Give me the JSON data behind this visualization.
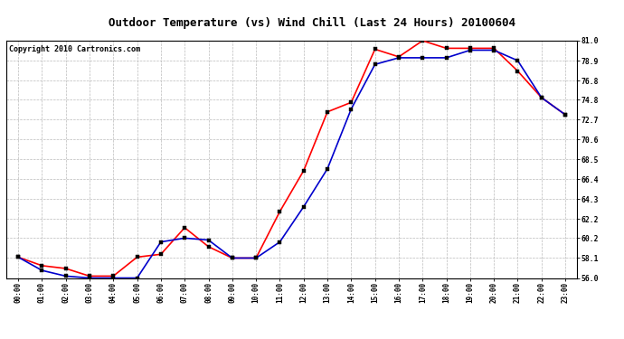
{
  "title": "Outdoor Temperature (vs) Wind Chill (Last 24 Hours) 20100604",
  "copyright": "Copyright 2010 Cartronics.com",
  "x_labels": [
    "00:00",
    "01:00",
    "02:00",
    "03:00",
    "04:00",
    "05:00",
    "06:00",
    "07:00",
    "08:00",
    "09:00",
    "10:00",
    "11:00",
    "12:00",
    "13:00",
    "14:00",
    "15:00",
    "16:00",
    "17:00",
    "18:00",
    "19:00",
    "20:00",
    "21:00",
    "22:00",
    "23:00"
  ],
  "temp": [
    58.2,
    57.3,
    57.0,
    56.2,
    56.2,
    58.2,
    58.5,
    61.3,
    59.3,
    58.1,
    58.1,
    63.0,
    67.3,
    73.5,
    74.5,
    80.1,
    79.3,
    81.0,
    80.2,
    80.2,
    80.2,
    77.8,
    75.0,
    73.2
  ],
  "wind_chill": [
    58.2,
    56.8,
    56.2,
    56.0,
    56.0,
    56.0,
    59.8,
    60.2,
    60.0,
    58.1,
    58.1,
    59.8,
    63.5,
    67.5,
    73.8,
    78.5,
    79.2,
    79.2,
    79.2,
    80.0,
    80.0,
    78.9,
    75.0,
    73.2
  ],
  "temp_color": "#ff0000",
  "wind_chill_color": "#0000cc",
  "ylim": [
    56.0,
    81.0
  ],
  "yticks": [
    56.0,
    58.1,
    60.2,
    62.2,
    64.3,
    66.4,
    68.5,
    70.6,
    72.7,
    74.8,
    76.8,
    78.9,
    81.0
  ],
  "bg_color": "#ffffff",
  "grid_color": "#bbbbbb",
  "title_fontsize": 9,
  "copyright_fontsize": 6,
  "marker_size": 2.5,
  "line_width": 1.2
}
